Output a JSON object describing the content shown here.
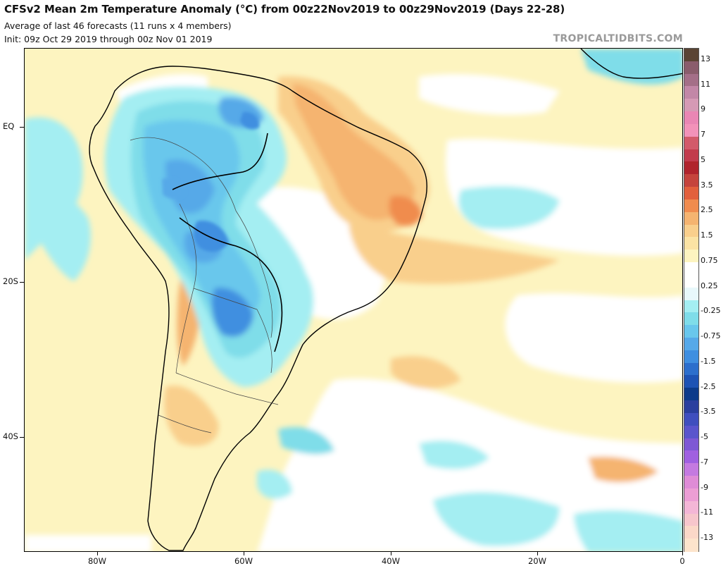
{
  "header": {
    "title": "CFSv2 Mean 2m Temperature Anomaly (°C) from 00z22Nov2019 to 00z29Nov2019 (Days 22-28)",
    "subtitle_line1": "Average of last 46 forecasts (11 runs x 4 members)",
    "subtitle_line2": "Init: 09z Oct 29 2019 through 00z Nov 01 2019",
    "watermark": "TROPICALTIDBITS.COM"
  },
  "axes": {
    "lat_labels": [
      "EQ",
      "20S",
      "40S"
    ],
    "lon_labels": [
      "80W",
      "60W",
      "40W",
      "20W",
      "0"
    ]
  },
  "colorbar": {
    "labels": [
      "13",
      "11",
      "9",
      "7",
      "5",
      "3.5",
      "2.5",
      "1.5",
      "0.75",
      "0.25",
      "-0.25",
      "-0.75",
      "-1.5",
      "-2.5",
      "-3.5",
      "-5",
      "-7",
      "-9",
      "-11",
      "-13"
    ],
    "colors": [
      "#5a4434",
      "#8a5d6c",
      "#a46f88",
      "#c287a7",
      "#d59ab5",
      "#e986b4",
      "#f292b9",
      "#d25a6a",
      "#c23c4c",
      "#b0242c",
      "#c5443c",
      "#e2603c",
      "#f08c4e",
      "#f5b470",
      "#f9cf8c",
      "#fbe3a4",
      "#fdf4c0",
      "#ffffff",
      "#ffffff",
      "#e8f8fb",
      "#a4eef2",
      "#7fdde9",
      "#69c7ec",
      "#56a9e8",
      "#3f8fe0",
      "#2c6fcc",
      "#1d53b4",
      "#0c3b8a",
      "#2a3f9e",
      "#3f4fbe",
      "#5a55cc",
      "#7e58d4",
      "#a060e0",
      "#c47ae0",
      "#df8cd6",
      "#ec9ed4",
      "#f4b6d6",
      "#f7c6cc",
      "#fbd8c8",
      "#fde4cc"
    ]
  },
  "legend_colors": {
    "warm_light": "#fdf4c0",
    "warm_mid": "#f9cf8c",
    "warm_strong": "#f5b470",
    "neutral": "#ffffff",
    "cool_light": "#a4eef2",
    "cool_mid": "#69c7ec",
    "cool_strong": "#3f8fe0",
    "cool_deep": "#2c6fcc"
  }
}
